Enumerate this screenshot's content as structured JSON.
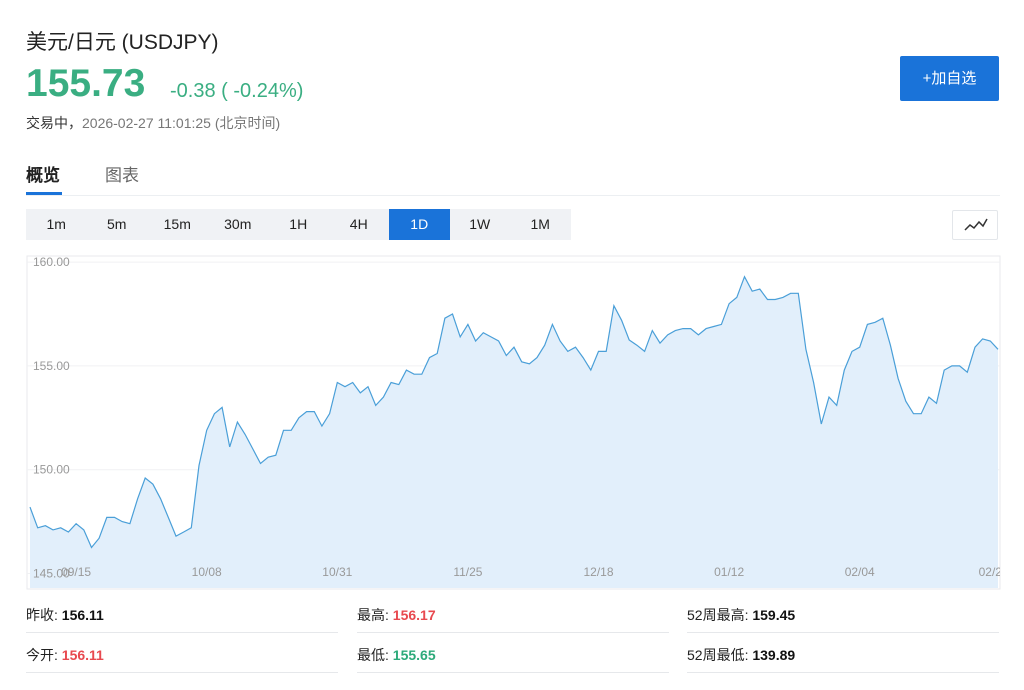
{
  "header": {
    "title": "美元/日元 (USDJPY)",
    "price": "155.73",
    "change": "-0.38 ( -0.24%)",
    "status": "交易中，",
    "time": "2026-02-27 11:01:25 (北京时间)",
    "button": "+加自选"
  },
  "tabs": [
    "概览",
    "图表"
  ],
  "periods": [
    "1m",
    "5m",
    "15m",
    "30m",
    "1H",
    "4H",
    "1D",
    "1W",
    "1M"
  ],
  "chart_data": {
    "type": "area",
    "color": "#4a9fd8",
    "fill": "#e2effb",
    "categories": [
      null,
      null,
      null,
      null,
      null,
      null,
      "09/15",
      null,
      null,
      null,
      null,
      null,
      null,
      null,
      null,
      null,
      null,
      null,
      null,
      null,
      null,
      null,
      null,
      "10/08",
      null,
      null,
      null,
      null,
      null,
      null,
      null,
      null,
      null,
      null,
      null,
      null,
      null,
      null,
      null,
      null,
      "10/31",
      null,
      null,
      null,
      null,
      null,
      null,
      null,
      null,
      null,
      null,
      null,
      null,
      null,
      null,
      null,
      null,
      "11/25",
      null,
      null,
      null,
      null,
      null,
      null,
      null,
      null,
      null,
      null,
      null,
      null,
      null,
      null,
      null,
      null,
      "12/18",
      null,
      null,
      null,
      null,
      null,
      null,
      null,
      null,
      null,
      null,
      null,
      null,
      null,
      null,
      null,
      null,
      "01/12",
      null,
      null,
      null,
      null,
      null,
      null,
      null,
      null,
      null,
      null,
      null,
      null,
      null,
      null,
      null,
      null,
      "02/04",
      null,
      null,
      null,
      null,
      null,
      null,
      null,
      null,
      null,
      null,
      null,
      null,
      null,
      null,
      null,
      null,
      "02/2",
      null
    ],
    "values": [
      148.2,
      147.2,
      147.3,
      147.1,
      147.2,
      147.0,
      147.4,
      147.1,
      146.25,
      146.7,
      147.7,
      147.7,
      147.5,
      147.4,
      148.6,
      149.6,
      149.3,
      148.6,
      147.7,
      146.8,
      147.0,
      147.2,
      150.2,
      151.9,
      152.7,
      153.0,
      151.1,
      152.3,
      151.7,
      151.0,
      150.3,
      150.6,
      150.7,
      151.9,
      151.9,
      152.5,
      152.8,
      152.8,
      152.1,
      152.7,
      154.2,
      154.0,
      154.2,
      153.7,
      154.0,
      153.1,
      153.5,
      154.2,
      154.1,
      154.8,
      154.6,
      154.6,
      155.4,
      155.6,
      157.3,
      157.5,
      156.4,
      157.0,
      156.2,
      156.6,
      156.4,
      156.2,
      155.5,
      155.9,
      155.2,
      155.1,
      155.4,
      156.0,
      157.0,
      156.2,
      155.7,
      155.9,
      155.4,
      154.8,
      155.7,
      155.7,
      157.9,
      157.2,
      156.25,
      156.0,
      155.7,
      156.7,
      156.1,
      156.5,
      156.7,
      156.8,
      156.8,
      156.5,
      156.8,
      156.9,
      157.0,
      158.0,
      158.3,
      159.3,
      158.6,
      158.7,
      158.2,
      158.2,
      158.3,
      158.5,
      158.5,
      155.8,
      154.2,
      152.2,
      153.5,
      153.1,
      154.8,
      155.7,
      155.9,
      157.0,
      157.1,
      157.3,
      156.0,
      154.4,
      153.3,
      152.7,
      152.7,
      153.5,
      153.2,
      154.8,
      155.0,
      155.0,
      154.7,
      155.9,
      156.3,
      156.2,
      155.8
    ],
    "ylim": [
      144.3,
      160.2
    ],
    "yticks": [
      {
        "value": 145,
        "label": "145.00"
      },
      {
        "value": 150,
        "label": "150.00"
      },
      {
        "value": 155,
        "label": "155.00"
      },
      {
        "value": 160,
        "label": "160.00"
      }
    ],
    "grid": true
  },
  "stats": [
    [
      "昨收:",
      "156.11",
      "最高:",
      "156.17",
      "52周最高:",
      "159.45"
    ],
    [
      "今开:",
      "156.11",
      "最低:",
      "155.65",
      "52周最低:",
      "139.89"
    ]
  ]
}
